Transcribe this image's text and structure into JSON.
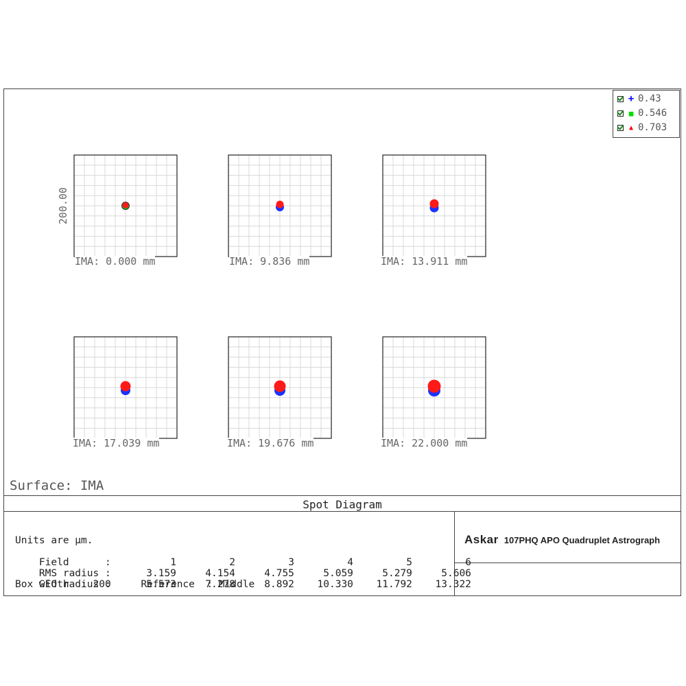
{
  "title": "Spot Diagram",
  "surface_label": "Surface: IMA",
  "scale_label": "200.00",
  "legend": [
    {
      "label": "0.43",
      "color": "#0000ff",
      "marker": "+",
      "icon": "plus-icon"
    },
    {
      "label": "0.546",
      "color": "#00dd00",
      "marker": "■",
      "icon": "square-icon"
    },
    {
      "label": "0.703",
      "color": "#ff0000",
      "marker": "▲",
      "icon": "triangle-icon"
    }
  ],
  "fields": [
    {
      "label": "IMA: 0.000 mm"
    },
    {
      "label": "IMA: 9.836 mm"
    },
    {
      "label": "IMA: 13.911 mm"
    },
    {
      "label": "IMA: 17.039 mm"
    },
    {
      "label": "IMA: 19.676 mm"
    },
    {
      "label": "IMA: 22.000 mm"
    }
  ],
  "info": {
    "units": "Units are µm.",
    "field_label": "Field      :",
    "field_values": [
      "1",
      "2",
      "3",
      "4",
      "5",
      "6"
    ],
    "rms_label": "RMS radius :",
    "rms_values": [
      "3.159",
      "4.154",
      "4.755",
      "5.059",
      "5.279",
      "5.606"
    ],
    "geo_label": "GEO radius :",
    "geo_values": [
      "5.573",
      "7.278",
      "8.892",
      "10.330",
      "11.792",
      "13.322"
    ],
    "box_line": "Box width  : 200     Reference  : Middle"
  },
  "brand": {
    "logo": "Askar",
    "text": "107PHQ APO Quadruplet Astrograph"
  }
}
